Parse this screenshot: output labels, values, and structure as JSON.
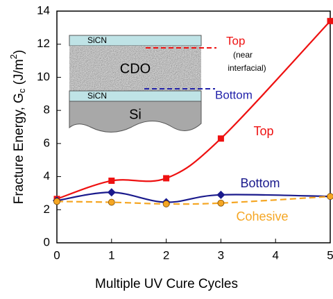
{
  "chart_data": {
    "type": "line",
    "x_label": "Multiple UV Cure Cycles",
    "y_label": {
      "main": "Fracture Energy, G",
      "sub": "c",
      "unit": " (J/m",
      "sup": "2",
      "end": ")"
    },
    "x": [
      0,
      1,
      2,
      3,
      5
    ],
    "series": [
      {
        "name": "Top",
        "color": "#ee1111",
        "marker": "square",
        "dashed": false,
        "values": [
          2.65,
          3.75,
          3.9,
          6.3,
          13.4
        ]
      },
      {
        "name": "Bottom",
        "color": "#1a1a8c",
        "marker": "diamond",
        "dashed": false,
        "values": [
          2.55,
          3.05,
          2.45,
          2.9,
          2.8
        ]
      },
      {
        "name": "Cohesive",
        "color": "#f5a623",
        "marker": "circle",
        "dashed": true,
        "values": [
          2.5,
          2.45,
          2.35,
          2.4,
          2.8
        ]
      }
    ],
    "xlim": [
      0,
      5
    ],
    "xticks": [
      0,
      1,
      2,
      3,
      4,
      5
    ],
    "ylim": [
      0,
      14
    ],
    "yticks": [
      0,
      2,
      4,
      6,
      8,
      10,
      12,
      14
    ],
    "inset": {
      "layer_top": "SiCN",
      "layer_mid": "CDO",
      "layer_low": "SiCN",
      "substrate": "Si",
      "top_label": "Top",
      "top_note_1": "(near",
      "top_note_2": "interfacial)",
      "bottom_label": "Bottom"
    }
  }
}
